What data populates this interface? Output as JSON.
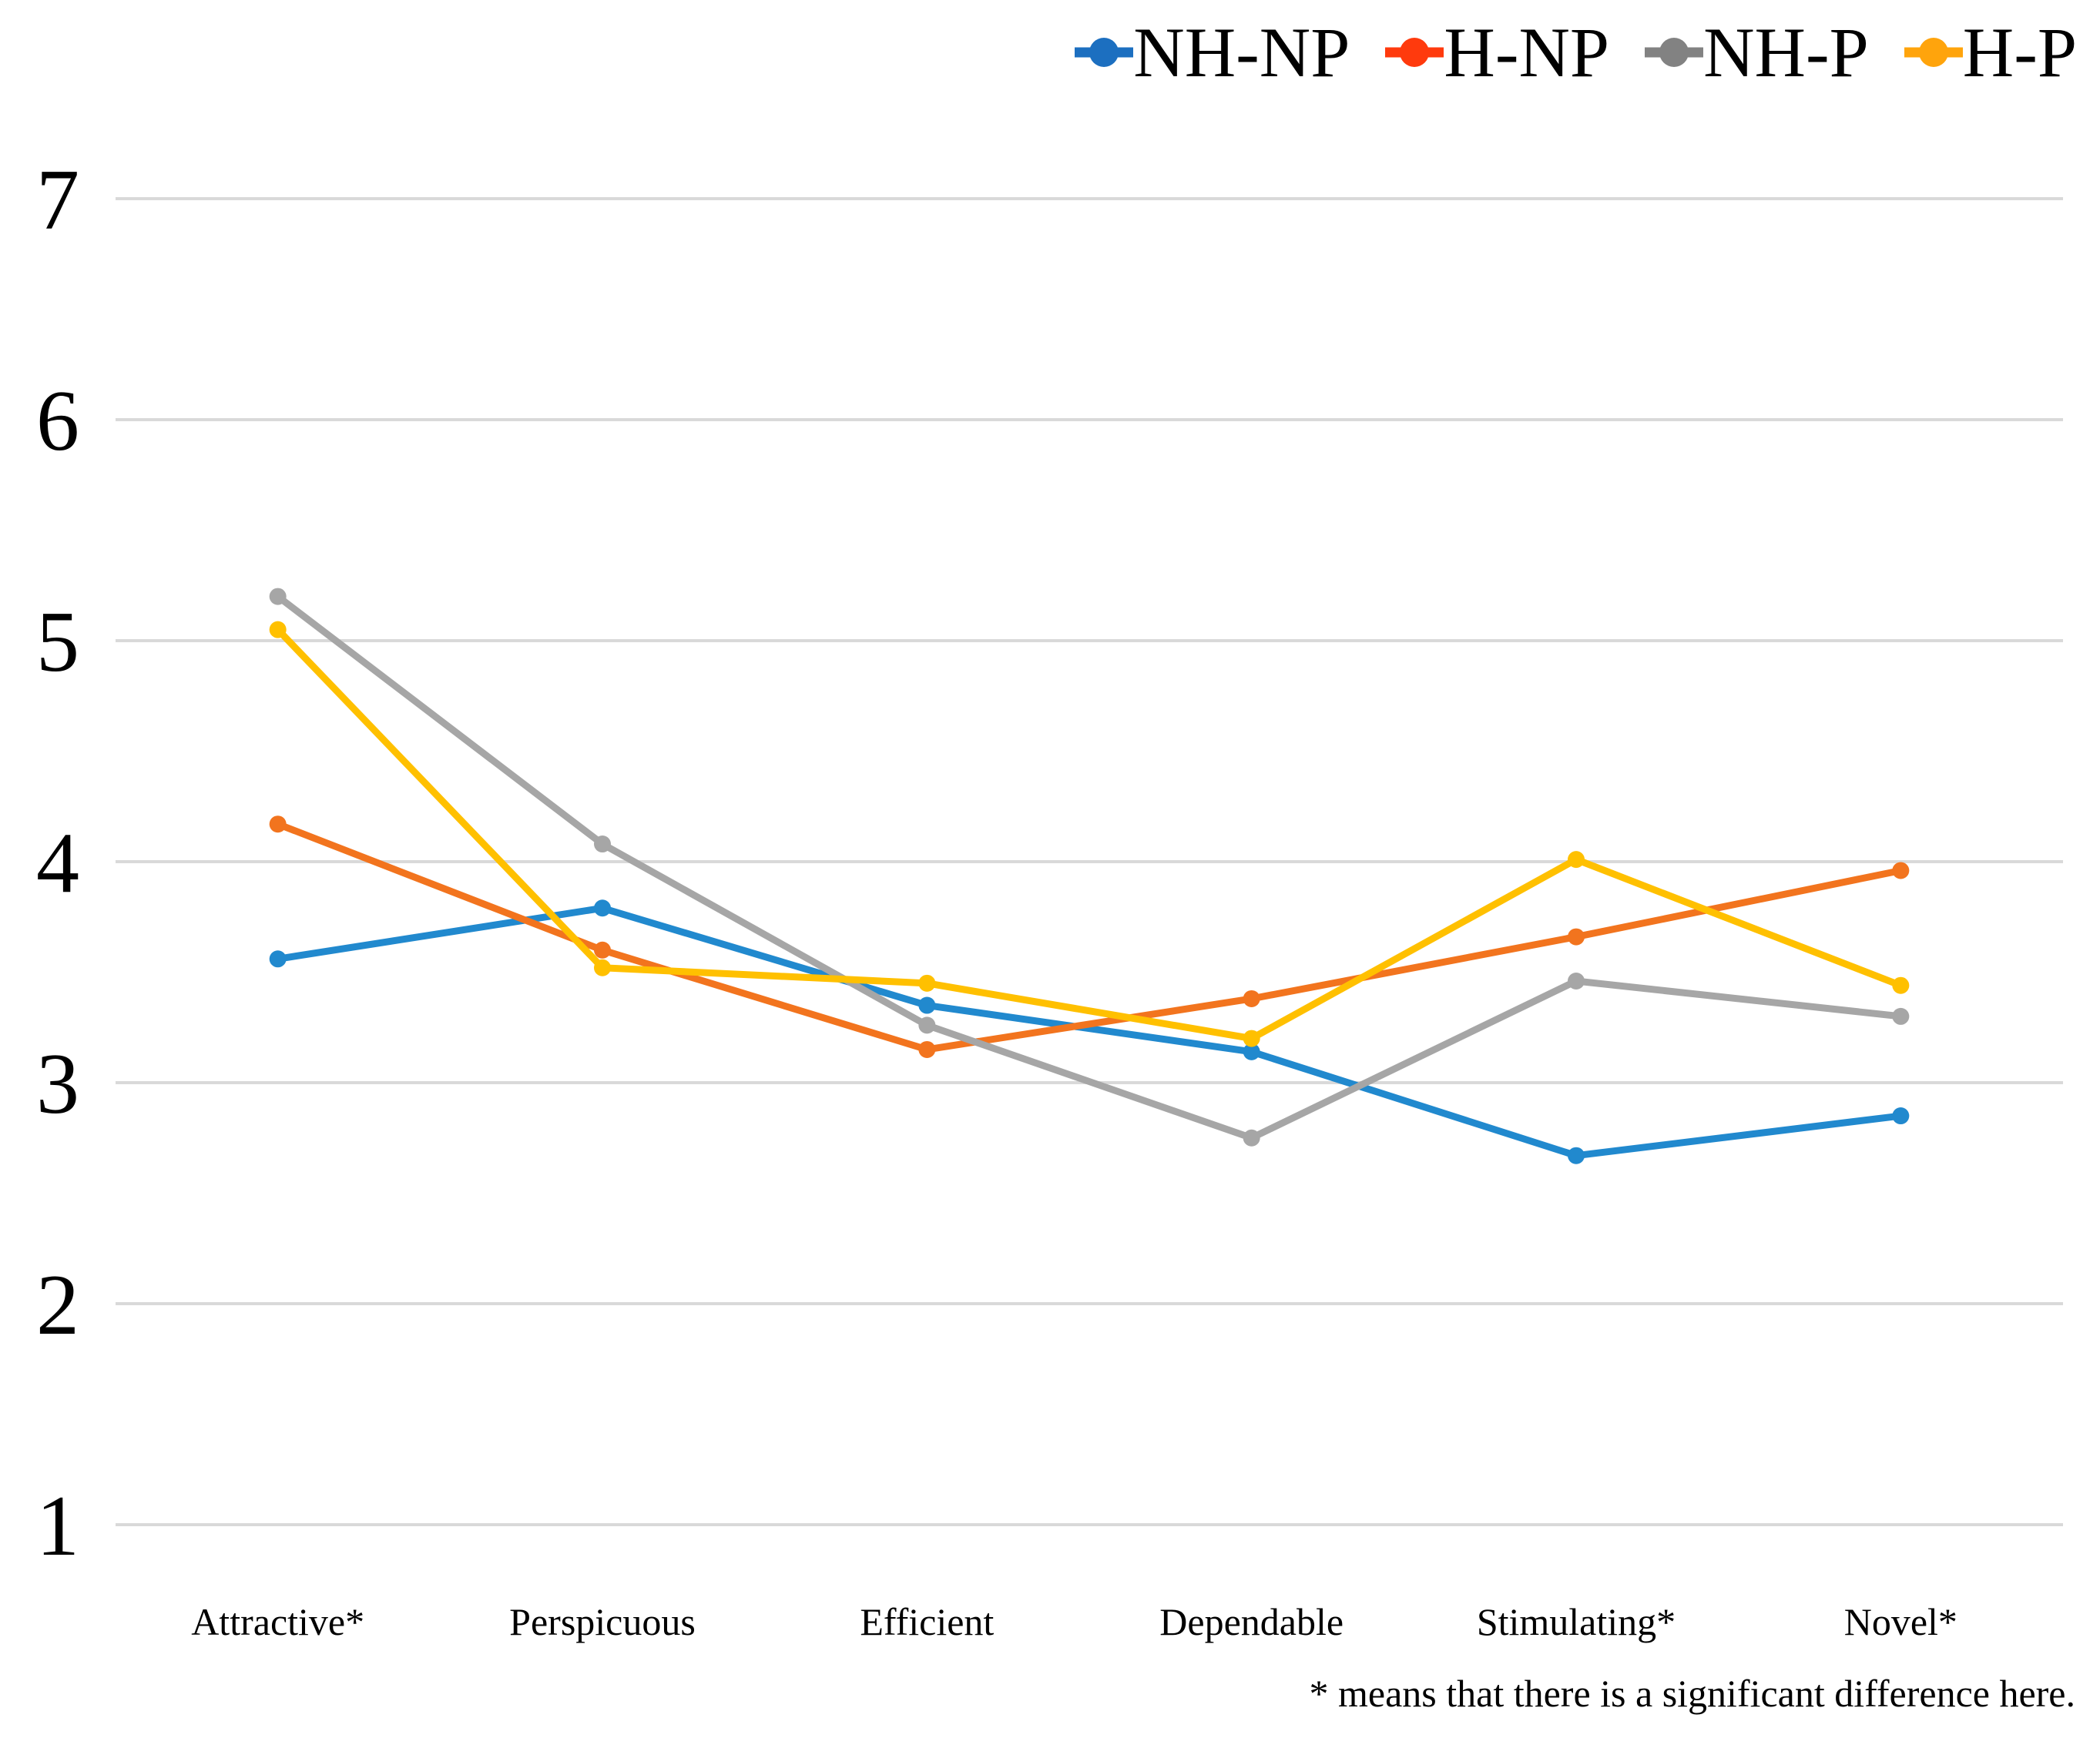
{
  "chart_data": {
    "type": "line",
    "title": "",
    "categories": [
      "Attractive*",
      "Perspicuous",
      "Efficient",
      "Dependable",
      "Stimulating*",
      "Novel*"
    ],
    "series": [
      {
        "name": "NH-NP",
        "values": [
          3.56,
          3.79,
          3.35,
          3.14,
          2.67,
          2.85
        ],
        "line_color": "#2189CE",
        "legend_color": "#1C6FC0"
      },
      {
        "name": "H-NP",
        "values": [
          4.17,
          3.6,
          3.15,
          3.38,
          3.66,
          3.96
        ],
        "line_color": "#F2741E",
        "legend_color": "#FF3A0D"
      },
      {
        "name": "NH-P",
        "values": [
          5.2,
          4.08,
          3.26,
          2.75,
          3.46,
          3.3
        ],
        "line_color": "#A6A6A6",
        "legend_color": "#828282"
      },
      {
        "name": "H-P",
        "values": [
          5.05,
          3.52,
          3.45,
          3.2,
          4.01,
          3.44
        ],
        "line_color": "#FFC000",
        "legend_color": "#FFA40C"
      }
    ],
    "ylim": [
      1,
      7
    ],
    "yticks": [
      1,
      2,
      3,
      4,
      5,
      6,
      7
    ],
    "grid": "horizontal",
    "legend_position": "top-right",
    "footnote": "* means that there is a significant difference here.",
    "colors": {
      "gridline": "#D9D9D9",
      "text": "#000000",
      "background": "#FFFFFF"
    }
  }
}
